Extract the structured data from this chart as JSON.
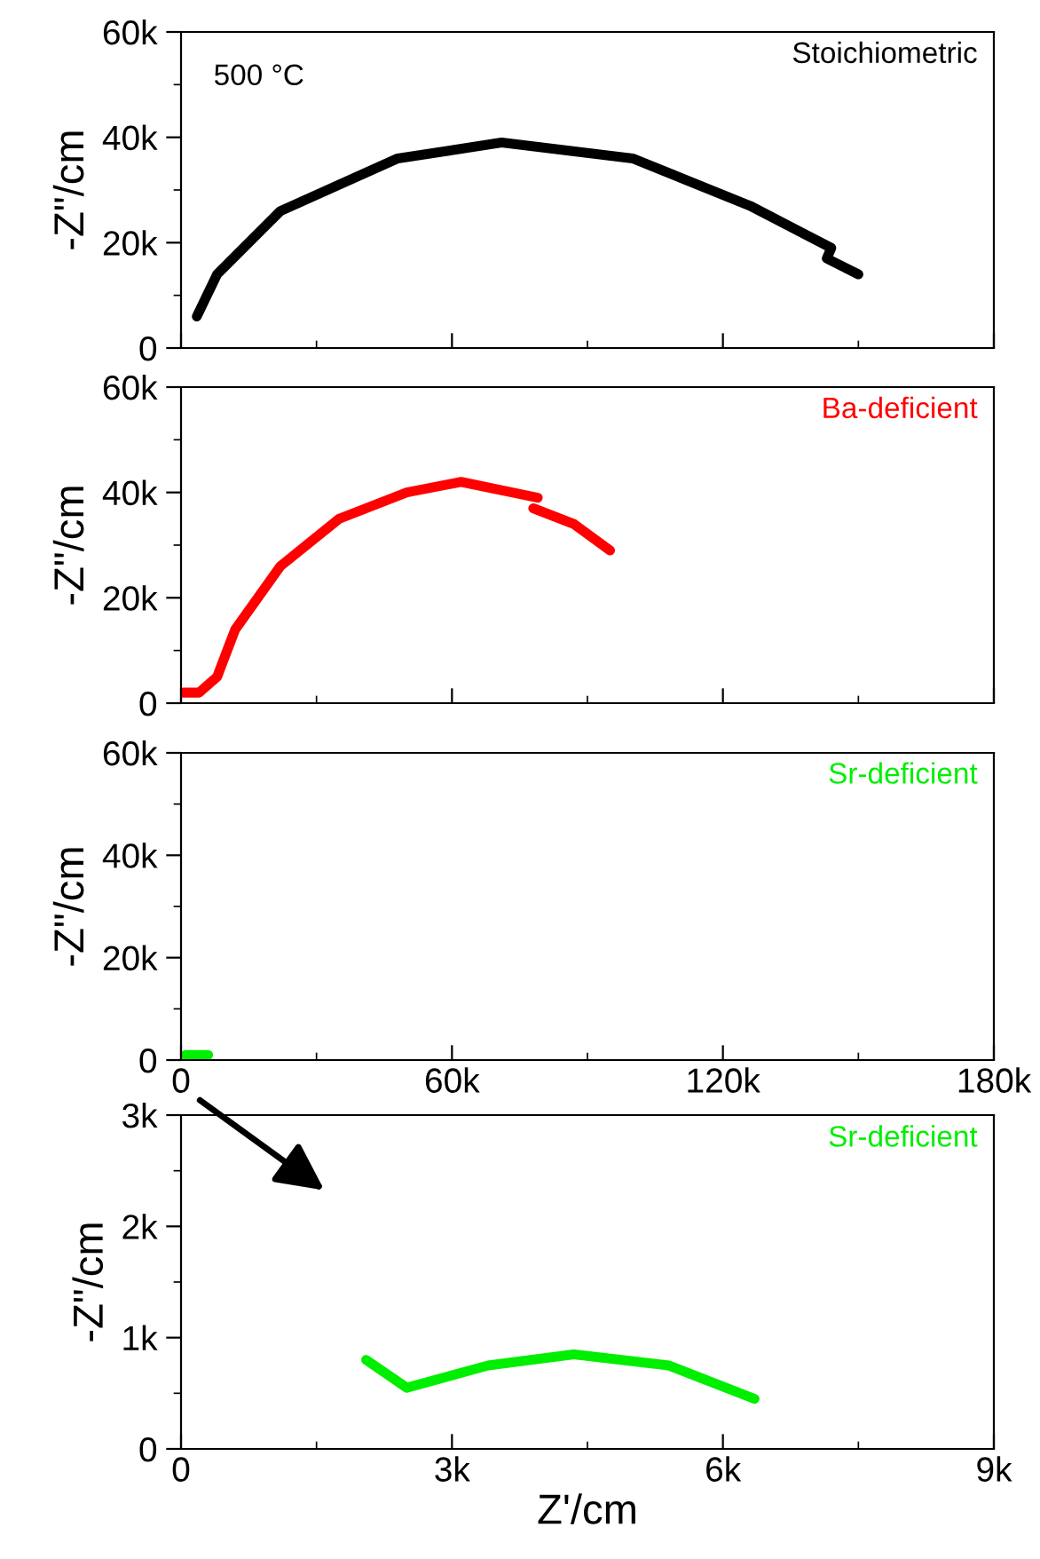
{
  "chart_data": [
    {
      "type": "line",
      "ylabel": "-Z\"/cm",
      "annotations": [
        "500 °C"
      ],
      "xlim": [
        0,
        180000
      ],
      "ylim": [
        0,
        60000
      ],
      "xticks": [
        {
          "value": 0,
          "label": null
        },
        {
          "value": 60000,
          "label": null
        },
        {
          "value": 120000,
          "label": null
        },
        {
          "value": 180000,
          "label": null
        }
      ],
      "yticks": [
        {
          "value": 0,
          "label": "0"
        },
        {
          "value": 20000,
          "label": "20k"
        },
        {
          "value": 40000,
          "label": "40k"
        },
        {
          "value": 60000,
          "label": "60k"
        }
      ],
      "tick_labels": "y",
      "grid": false,
      "legend": "top right",
      "line_style": "solid",
      "marker": "none",
      "series": [
        {
          "name": "Stoichiometric",
          "color": "#000000",
          "x": [
            3500,
            8000,
            22000,
            48000,
            71000,
            100000,
            126000,
            144000,
            143000,
            150000
          ],
          "values": [
            6000,
            14000,
            26000,
            36000,
            39000,
            36000,
            27000,
            19000,
            17000,
            14000
          ]
        }
      ]
    },
    {
      "type": "line",
      "ylabel": "-Z\"/cm",
      "xlim": [
        0,
        180000
      ],
      "ylim": [
        0,
        60000
      ],
      "xticks": [
        {
          "value": 0,
          "label": null
        },
        {
          "value": 60000,
          "label": null
        },
        {
          "value": 120000,
          "label": null
        },
        {
          "value": 180000,
          "label": null
        }
      ],
      "yticks": [
        {
          "value": 0,
          "label": "0"
        },
        {
          "value": 20000,
          "label": "20k"
        },
        {
          "value": 40000,
          "label": "40k"
        },
        {
          "value": 60000,
          "label": "60k"
        }
      ],
      "tick_labels": "y",
      "grid": false,
      "legend": "top right",
      "line_style": "solid",
      "marker": "none",
      "series": [
        {
          "name": "Ba-deficient",
          "color": "#ff0000",
          "x": [
            500,
            4000,
            8000,
            12000,
            22000,
            35000,
            50000,
            62000,
            79000,
            null,
            78000,
            87000,
            95000
          ],
          "values": [
            2000,
            2000,
            5000,
            14000,
            26000,
            35000,
            40000,
            42000,
            39000,
            null,
            37000,
            34000,
            29000
          ]
        }
      ]
    },
    {
      "type": "line",
      "ylabel": "-Z\"/cm",
      "xlim": [
        0,
        180000
      ],
      "ylim": [
        0,
        60000
      ],
      "xticks": [
        {
          "value": 0,
          "label": "0"
        },
        {
          "value": 60000,
          "label": "60k"
        },
        {
          "value": 120000,
          "label": "120k"
        },
        {
          "value": 180000,
          "label": "180k"
        }
      ],
      "yticks": [
        {
          "value": 0,
          "label": "0"
        },
        {
          "value": 20000,
          "label": "20k"
        },
        {
          "value": 40000,
          "label": "40k"
        },
        {
          "value": 60000,
          "label": "60k"
        }
      ],
      "grid": false,
      "legend": "top right",
      "line_style": "solid",
      "marker": "none",
      "series": [
        {
          "name": "Sr-deficient",
          "color": "#00ee00",
          "x": [
            1000,
            4000,
            6000
          ],
          "values": [
            1000,
            1000,
            1000
          ]
        }
      ]
    },
    {
      "type": "line",
      "ylabel": "-Z\"/cm",
      "xlabel": "Z'/cm",
      "xlim": [
        0,
        9000
      ],
      "ylim": [
        0,
        3000
      ],
      "xticks": [
        {
          "value": 0,
          "label": "0"
        },
        {
          "value": 3000,
          "label": "3k"
        },
        {
          "value": 6000,
          "label": "6k"
        },
        {
          "value": 9000,
          "label": "9k"
        }
      ],
      "yticks": [
        {
          "value": 0,
          "label": "0"
        },
        {
          "value": 1000,
          "label": "1k"
        },
        {
          "value": 2000,
          "label": "2k"
        },
        {
          "value": 3000,
          "label": "3k"
        }
      ],
      "grid": false,
      "legend": "top right",
      "line_style": "solid",
      "marker": "none",
      "series": [
        {
          "name": "Sr-deficient",
          "color": "#00ee00",
          "x": [
            2050,
            2500,
            3400,
            4350,
            5400,
            6350
          ],
          "values": [
            800,
            550,
            750,
            850,
            750,
            450
          ]
        }
      ]
    }
  ]
}
